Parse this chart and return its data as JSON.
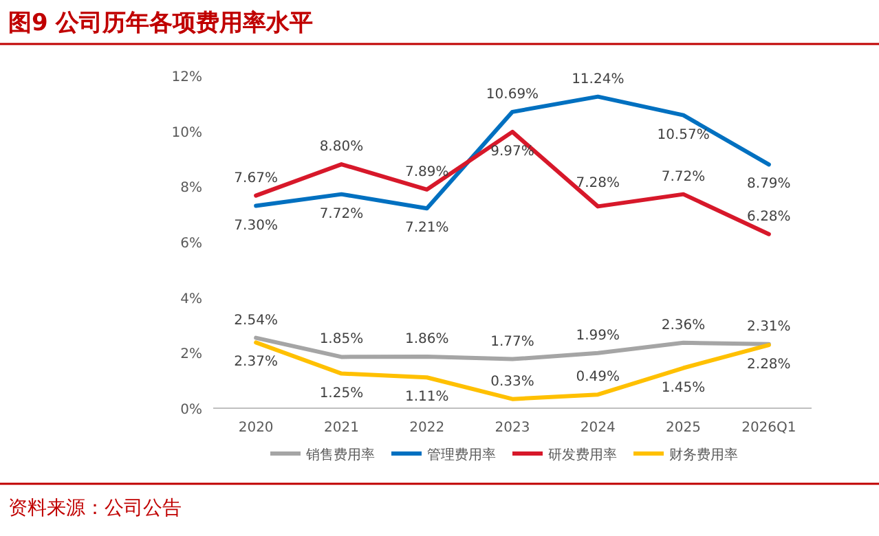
{
  "chart_data": {
    "type": "line",
    "title": "图9  公司历年各项费用率水平",
    "categories": [
      "2020",
      "2021",
      "2022",
      "2023",
      "2024",
      "2025",
      "2026Q1"
    ],
    "ylim": [
      0,
      12
    ],
    "yticks": [
      {
        "value": 0,
        "label": "0%"
      },
      {
        "value": 2,
        "label": "2%"
      },
      {
        "value": 4,
        "label": "4%"
      },
      {
        "value": 6,
        "label": "6%"
      },
      {
        "value": 8,
        "label": "8%"
      },
      {
        "value": 10,
        "label": "10%"
      },
      {
        "value": 12,
        "label": "12%"
      }
    ],
    "legend": "bottom",
    "grid": false,
    "marker": "none",
    "line_style": "solid",
    "series": [
      {
        "name": "销售费用率",
        "color": "#a5a5a5",
        "values": [
          2.54,
          1.85,
          1.86,
          1.77,
          1.99,
          2.36,
          2.31
        ],
        "value_labels": [
          "2.54%",
          "1.85%",
          "1.86%",
          "1.77%",
          "1.99%",
          "2.36%",
          "2.31%"
        ]
      },
      {
        "name": "管理费用率",
        "color": "#0070c0",
        "values": [
          7.3,
          7.72,
          7.21,
          10.69,
          11.24,
          10.57,
          8.79
        ],
        "value_labels": [
          "7.30%",
          "7.72%",
          "7.21%",
          "10.69%",
          "11.24%",
          "10.57%",
          "8.79%"
        ]
      },
      {
        "name": "研发费用率",
        "color": "#d7182a",
        "values": [
          7.67,
          8.8,
          7.89,
          9.97,
          7.28,
          7.72,
          6.28
        ],
        "value_labels": [
          "7.67%",
          "8.80%",
          "7.89%",
          "9.97%",
          "7.28%",
          "7.72%",
          "6.28%"
        ]
      },
      {
        "name": "财务费用率",
        "color": "#ffc000",
        "values": [
          2.37,
          1.25,
          1.11,
          0.33,
          0.49,
          1.45,
          2.28
        ],
        "value_labels": [
          "2.37%",
          "1.25%",
          "1.11%",
          "0.33%",
          "0.49%",
          "1.45%",
          "2.28%"
        ]
      }
    ],
    "annotations": [
      "资料来源：公司公告"
    ]
  }
}
